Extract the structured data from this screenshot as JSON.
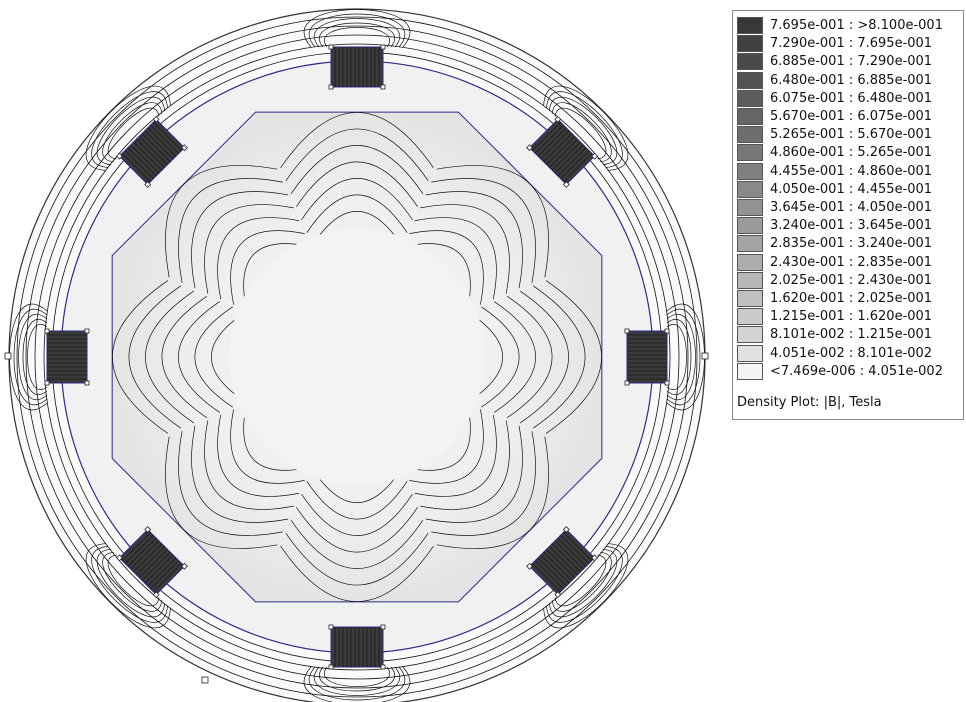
{
  "legend": {
    "entries": [
      {
        "range": "7.695e-001 : >8.100e-001",
        "color": "#383838"
      },
      {
        "range": "7.290e-001 : 7.695e-001",
        "color": "#414141"
      },
      {
        "range": "6.885e-001 : 7.290e-001",
        "color": "#4a4a4a"
      },
      {
        "range": "6.480e-001 : 6.885e-001",
        "color": "#535353"
      },
      {
        "range": "6.075e-001 : 6.480e-001",
        "color": "#5c5c5c"
      },
      {
        "range": "5.670e-001 : 6.075e-001",
        "color": "#656565"
      },
      {
        "range": "5.265e-001 : 5.670e-001",
        "color": "#6e6e6e"
      },
      {
        "range": "4.860e-001 : 5.265e-001",
        "color": "#777777"
      },
      {
        "range": "4.455e-001 : 4.860e-001",
        "color": "#808080"
      },
      {
        "range": "4.050e-001 : 4.455e-001",
        "color": "#898989"
      },
      {
        "range": "3.645e-001 : 4.050e-001",
        "color": "#929292"
      },
      {
        "range": "3.240e-001 : 3.645e-001",
        "color": "#9b9b9b"
      },
      {
        "range": "2.835e-001 : 3.240e-001",
        "color": "#a4a4a4"
      },
      {
        "range": "2.430e-001 : 2.835e-001",
        "color": "#adadad"
      },
      {
        "range": "2.025e-001 : 2.430e-001",
        "color": "#b6b6b6"
      },
      {
        "range": "1.620e-001 : 2.025e-001",
        "color": "#c0c0c0"
      },
      {
        "range": "1.215e-001 : 1.620e-001",
        "color": "#cacaca"
      },
      {
        "range": "8.101e-002 : 1.215e-001",
        "color": "#d4d4d4"
      },
      {
        "range": "4.051e-002 : 8.101e-002",
        "color": "#e2e2e2"
      },
      {
        "range": "<7.469e-006 : 4.051e-002",
        "color": "#f4f4f4"
      }
    ],
    "caption": "Density Plot: |B|, Tesla"
  },
  "colors": {
    "geometry_outline": "#2b2b8c",
    "flux_lines": "#111111",
    "background": "#ffffff"
  }
}
